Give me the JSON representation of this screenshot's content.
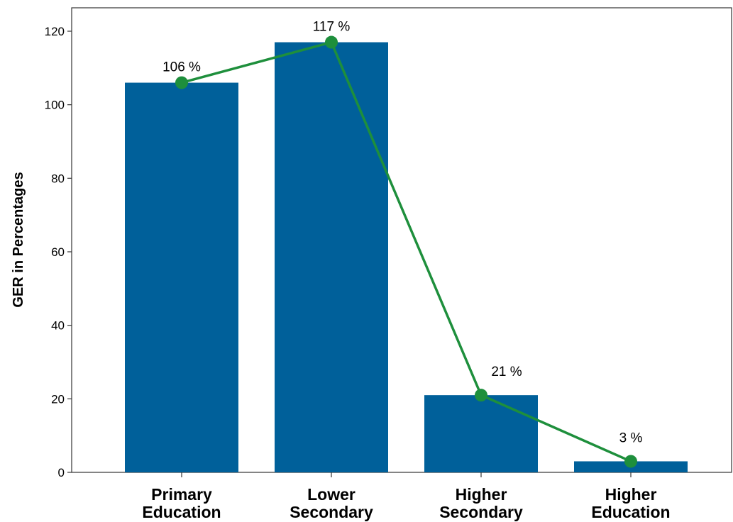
{
  "chart_data": {
    "type": "bar",
    "categories": [
      [
        "Primary",
        "Education"
      ],
      [
        "Lower",
        "Secondary"
      ],
      [
        "Higher",
        "Secondary"
      ],
      [
        "Higher",
        "Education"
      ]
    ],
    "values": [
      106,
      117,
      21,
      3
    ],
    "line_values": [
      106,
      117,
      21,
      3
    ],
    "data_labels": [
      "106 %",
      "117 %",
      "21 %",
      "3 %"
    ],
    "ylabel": "GER in Percentages",
    "xlabel": "",
    "ylim": [
      0,
      120
    ],
    "yticks": [
      0,
      20,
      40,
      60,
      80,
      100,
      120
    ],
    "grid": false,
    "colors": {
      "bar": "#00609A",
      "line": "#1E8F3C",
      "marker": "#1E8F3C"
    }
  }
}
